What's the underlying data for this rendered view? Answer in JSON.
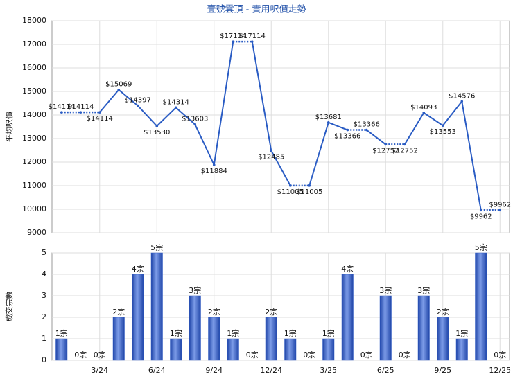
{
  "chart_data": [
    {
      "type": "line",
      "title": "壹號雲頂 - 實用呎價走勢",
      "y_label": "平均呎價",
      "values": [
        14114,
        14114,
        14114,
        15069,
        14397,
        13530,
        14314,
        13603,
        11884,
        17114,
        17114,
        12485,
        11005,
        11005,
        13681,
        13366,
        13366,
        12752,
        12752,
        14093,
        13553,
        14576,
        9962,
        9962
      ],
      "value_labels": [
        "$14114",
        "$14114",
        "$14114",
        "$15069",
        "$14397",
        "$13530",
        "$14314",
        "$13603",
        "$11884",
        "$17114",
        "$17114",
        "$12485",
        "$11005",
        "$11005",
        "$13681",
        "$13366",
        "$13366",
        "$12752",
        "$12752",
        "$14093",
        "$13553",
        "$14576",
        "$9962",
        "$9962"
      ],
      "color": "#2a5cc4",
      "ylim": [
        9000,
        18000
      ],
      "yticks": [
        9000,
        10000,
        11000,
        12000,
        13000,
        14000,
        15000,
        16000,
        17000,
        18000
      ],
      "grid": true
    },
    {
      "type": "bar",
      "y_label": "成交宗數",
      "categories": [
        null,
        null,
        "3/24",
        null,
        null,
        "6/24",
        null,
        null,
        "9/24",
        null,
        null,
        "12/24",
        null,
        null,
        "3/25",
        null,
        null,
        "6/25",
        null,
        null,
        "9/25",
        null,
        null,
        "12/25"
      ],
      "values": [
        1,
        0,
        0,
        2,
        4,
        5,
        1,
        3,
        2,
        1,
        0,
        2,
        1,
        0,
        1,
        4,
        0,
        3,
        0,
        3,
        2,
        1,
        5,
        0
      ],
      "value_labels": [
        "1宗",
        "0宗",
        "0宗",
        "2宗",
        "4宗",
        "5宗",
        "1宗",
        "3宗",
        "2宗",
        "1宗",
        "0宗",
        "2宗",
        "1宗",
        "0宗",
        "1宗",
        "4宗",
        "0宗",
        "3宗",
        "0宗",
        "3宗",
        "2宗",
        "1宗",
        "5宗",
        "0宗"
      ],
      "color": "#3560c8",
      "ylim": [
        0,
        5
      ],
      "yticks": [
        0,
        1,
        2,
        3,
        4,
        5
      ],
      "grid": true
    }
  ]
}
